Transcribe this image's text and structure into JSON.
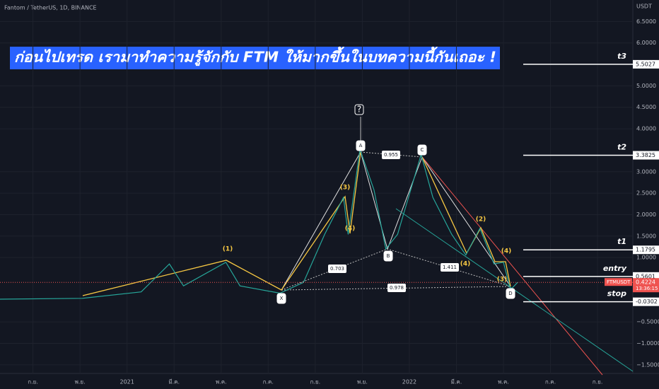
{
  "chart_data": {
    "type": "line",
    "title": "Fantom / TetherUS, 1D, BINANCE",
    "currency": "USDT",
    "banner": "ก่อนไปเทรด เรามาทำความรู้จักกับ FTM ให้มากขึ้นในบทความนี้กันเถอะ !",
    "color": "#26a69a",
    "x": [
      -1.4,
      2.1,
      4.6,
      5.8,
      6.4,
      8.2,
      8.8,
      10.5,
      11.5,
      12.4,
      13.2,
      13.4,
      13.9,
      14.5,
      15.0,
      15.5,
      16.5,
      17.0,
      17.8,
      18.4,
      19.0,
      19.6,
      20.0,
      20.3,
      20.6
    ],
    "values": [
      0.03,
      0.05,
      0.2,
      0.85,
      0.34,
      0.89,
      0.34,
      0.17,
      0.42,
      1.54,
      2.4,
      1.54,
      3.52,
      2.57,
      1.2,
      1.54,
      3.4,
      2.4,
      1.54,
      1.06,
      1.68,
      0.85,
      0.89,
      0.25,
      0.42
    ],
    "xlim": [
      -1.4,
      25.5
    ],
    "ylim": [
      -1.7,
      7.0
    ],
    "xticks": [
      {
        "value": 0,
        "label": "ก.ย."
      },
      {
        "value": 2,
        "label": "พ.ย."
      },
      {
        "value": 4,
        "label": "2021"
      },
      {
        "value": 6,
        "label": "มี.ค."
      },
      {
        "value": 8,
        "label": "พ.ค."
      },
      {
        "value": 10,
        "label": "ก.ค."
      },
      {
        "value": 12,
        "label": "ก.ย."
      },
      {
        "value": 14,
        "label": "พ.ย."
      },
      {
        "value": 16,
        "label": "2022"
      },
      {
        "value": 18,
        "label": "มี.ค."
      },
      {
        "value": 20,
        "label": "พ.ค."
      },
      {
        "value": 22,
        "label": "ก.ค."
      },
      {
        "value": 24,
        "label": "ก.ย."
      }
    ],
    "yticks": [
      {
        "value": 6.5,
        "label": "6.5000"
      },
      {
        "value": 6,
        "label": "6.0000"
      },
      {
        "value": 5,
        "label": "5.0000"
      },
      {
        "value": 4.5,
        "label": "4.5000"
      },
      {
        "value": 4,
        "label": "4.0000"
      },
      {
        "value": 3,
        "label": "3.0000"
      },
      {
        "value": 2.5,
        "label": "2.5000"
      },
      {
        "value": 2,
        "label": "2.0000"
      },
      {
        "value": 1.5,
        "label": "1.5000"
      },
      {
        "value": 1,
        "label": "1.0000"
      },
      {
        "value": -0.5,
        "label": "−0.5000"
      },
      {
        "value": -1,
        "label": "−1.0000"
      },
      {
        "value": -1.5,
        "label": "−1.5000"
      }
    ],
    "levels": [
      {
        "name": "t3",
        "value": 5.5027
      },
      {
        "name": "t2",
        "value": 3.3825
      },
      {
        "name": "t1",
        "value": 1.1795
      },
      {
        "name": "entry",
        "value": 0.5601
      },
      {
        "name": "stop",
        "value": -0.0302
      }
    ],
    "last": {
      "symbol": "FTMUSDT",
      "value": 0.4224,
      "countdown": "13:36:15"
    },
    "annotations": [
      "(1)",
      "(3)",
      "(4)",
      "(2)",
      "(4)",
      "(3)",
      "(4)",
      "?",
      "X",
      "A",
      "B",
      "C",
      "D",
      "0.955",
      "0.703",
      "1.411",
      "0.978"
    ]
  }
}
